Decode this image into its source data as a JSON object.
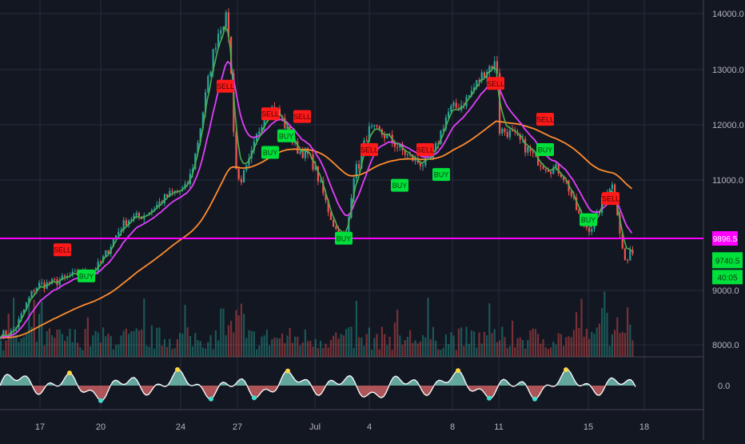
{
  "colors": {
    "background": "#131722",
    "grid": "#2a2e39",
    "axis_text": "#b2b5be",
    "candle_up": "#26a69a",
    "candle_down": "#ef5350",
    "fast_ma": "#4caf50",
    "slow_ma": "#e040fb",
    "long_ma": "#ff8c2e",
    "support_line": "#ff00ff",
    "buy_marker": "#00e03a",
    "sell_marker": "#ff1a1a",
    "oscillator_line": "#ffffff",
    "oscillator_pos_fill": "#7fd7c4",
    "oscillator_neg_fill": "#e06a6a",
    "oscillator_cross": "#ffd740",
    "oscillator_extreme": "#40e0d0"
  },
  "chart_data": [
    {
      "type": "line",
      "description_scope": "price pane: candlesticks with three moving averages, volume histogram, horizontal support line",
      "title": "",
      "xlabel": "",
      "ylabel": "",
      "x_ticks": [
        "17",
        "20",
        "24",
        "27",
        "Jul",
        "4",
        "8",
        "11",
        "15",
        "18"
      ],
      "y_ticks": [
        "14000.0",
        "13000.0",
        "12000.0",
        "11000.0",
        "9000.0",
        "8000.0"
      ],
      "ylim": [
        7900,
        14150
      ],
      "key_points": [
        {
          "x": "Jun 14",
          "y": 8200
        },
        {
          "x": "Jun 17",
          "y": 9100
        },
        {
          "x": "Jun 19",
          "y": 9300
        },
        {
          "x": "Jun 22",
          "y": 10300
        },
        {
          "x": "Jun 24",
          "y": 10800
        },
        {
          "x": "Jun 26",
          "y": 13900
        },
        {
          "x": "Jun 27",
          "y": 11000
        },
        {
          "x": "Jun 28",
          "y": 12300
        },
        {
          "x": "Jun 30",
          "y": 11500
        },
        {
          "x": "Jul 2",
          "y": 9900
        },
        {
          "x": "Jul 3",
          "y": 11200
        },
        {
          "x": "Jul 4",
          "y": 11900
        },
        {
          "x": "Jul 6",
          "y": 11300
        },
        {
          "x": "Jul 8",
          "y": 12300
        },
        {
          "x": "Jul 10",
          "y": 13100
        },
        {
          "x": "Jul 11",
          "y": 11900
        },
        {
          "x": "Jul 13",
          "y": 11200
        },
        {
          "x": "Jul 15",
          "y": 10100
        },
        {
          "x": "Jul 16",
          "y": 10900
        },
        {
          "x": "Jul 17",
          "y": 9500
        },
        {
          "x": "Jul 17 (last)",
          "y": 9740.5
        }
      ],
      "horizontal_line": {
        "value": 9896.5,
        "label": "9896.5"
      },
      "last_price": {
        "value": 9740.5,
        "label": "9740.5"
      },
      "countdown": "40:05",
      "signals": [
        {
          "label": "SELL",
          "x": "Jun 18",
          "y": 9700
        },
        {
          "label": "BUY",
          "x": "Jun 19",
          "y": 9250
        },
        {
          "label": "SELL",
          "x": "Jun 26",
          "y": 12700
        },
        {
          "label": "BUY",
          "x": "Jun 28",
          "y": 11500
        },
        {
          "label": "SELL",
          "x": "Jun 28",
          "y": 12200
        },
        {
          "label": "BUY",
          "x": "Jun 29",
          "y": 11800
        },
        {
          "label": "SELL",
          "x": "Jun 30",
          "y": 12150
        },
        {
          "label": "BUY",
          "x": "Jul 2",
          "y": 9900
        },
        {
          "label": "SELL",
          "x": "Jul 4",
          "y": 11550
        },
        {
          "label": "BUY",
          "x": "Jul 5",
          "y": 10900
        },
        {
          "label": "SELL",
          "x": "Jul 6",
          "y": 11550
        },
        {
          "label": "BUY",
          "x": "Jul 7",
          "y": 11100
        },
        {
          "label": "SELL",
          "x": "Jul 10",
          "y": 12750
        },
        {
          "label": "SELL",
          "x": "Jul 12",
          "y": 12100
        },
        {
          "label": "BUY",
          "x": "Jul 12",
          "y": 11550
        },
        {
          "label": "BUY",
          "x": "Jul 15",
          "y": 10250
        },
        {
          "label": "SELL",
          "x": "Jul 16",
          "y": 10650
        }
      ]
    },
    {
      "type": "area",
      "description_scope": "oscillator pane beneath the price chart",
      "y_ticks": [
        "0.0"
      ],
      "baseline": 0.0
    }
  ]
}
